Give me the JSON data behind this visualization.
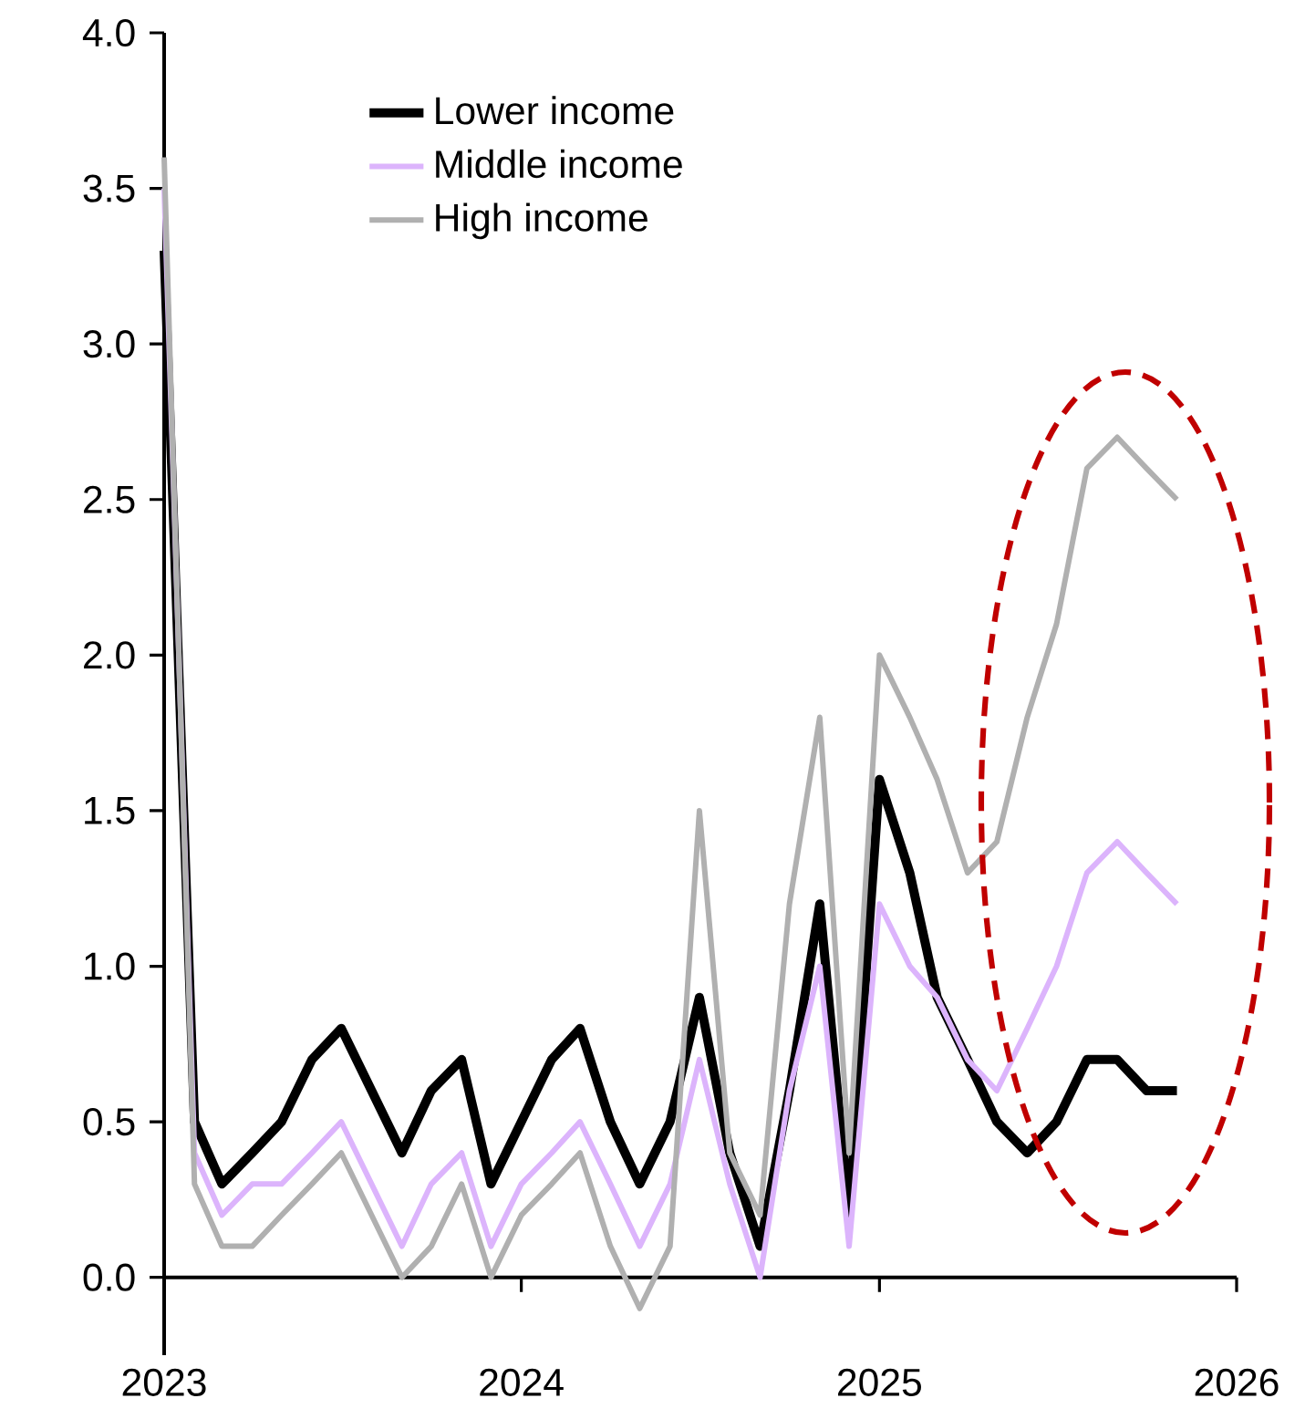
{
  "chart_data": {
    "type": "line",
    "x": [
      "2023-01",
      "2023-02",
      "2023-03",
      "2023-04",
      "2023-05",
      "2023-06",
      "2023-07",
      "2023-08",
      "2023-09",
      "2023-10",
      "2023-11",
      "2023-12",
      "2024-01",
      "2024-02",
      "2024-03",
      "2024-04",
      "2024-05",
      "2024-06",
      "2024-07",
      "2024-08",
      "2024-09",
      "2024-10",
      "2024-11",
      "2024-12",
      "2025-01",
      "2025-02",
      "2025-03",
      "2025-04",
      "2025-05",
      "2025-06",
      "2025-07",
      "2025-08",
      "2025-09",
      "2025-10",
      "2025-11"
    ],
    "series": [
      {
        "name": "Lower income",
        "color": "#000000",
        "values": [
          3.3,
          0.5,
          0.3,
          0.4,
          0.5,
          0.7,
          0.8,
          0.6,
          0.4,
          0.6,
          0.7,
          0.3,
          0.5,
          0.7,
          0.8,
          0.5,
          0.3,
          0.5,
          0.9,
          0.4,
          0.1,
          0.6,
          1.2,
          0.2,
          1.6,
          1.3,
          0.9,
          0.7,
          0.5,
          0.4,
          0.5,
          0.7,
          0.7,
          0.6,
          0.6
        ]
      },
      {
        "name": "Middle income",
        "color": "#dcb4fc",
        "values": [
          3.5,
          0.4,
          0.2,
          0.3,
          0.3,
          0.4,
          0.5,
          0.3,
          0.1,
          0.3,
          0.4,
          0.1,
          0.3,
          0.4,
          0.5,
          0.3,
          0.1,
          0.3,
          0.7,
          0.3,
          0.0,
          0.6,
          1.0,
          0.1,
          1.2,
          1.0,
          0.9,
          0.7,
          0.6,
          0.8,
          1.0,
          1.3,
          1.4,
          1.3,
          1.2
        ]
      },
      {
        "name": "High income",
        "color": "#b0b0b0",
        "values": [
          3.6,
          0.3,
          0.1,
          0.1,
          0.2,
          0.3,
          0.4,
          0.2,
          0.0,
          0.1,
          0.3,
          0.0,
          0.2,
          0.3,
          0.4,
          0.1,
          -0.1,
          0.1,
          1.5,
          0.4,
          0.2,
          1.2,
          1.8,
          0.4,
          2.0,
          1.8,
          1.6,
          1.3,
          1.4,
          1.8,
          2.1,
          2.6,
          2.7,
          2.6,
          2.5
        ]
      }
    ],
    "xlim": [
      "2023-01-01",
      "2026-01-01"
    ],
    "xticks": [
      {
        "value": "2023-01-01",
        "label": "2023"
      },
      {
        "value": "2024-01-01",
        "label": "2024"
      },
      {
        "value": "2025-01-01",
        "label": "2025"
      },
      {
        "value": "2026-01-01",
        "label": "2026"
      }
    ],
    "ylim": [
      -0.25,
      4
    ],
    "yticks": [
      {
        "value": 0,
        "label": "0.0"
      },
      {
        "value": 0.5,
        "label": "0.5"
      },
      {
        "value": 1,
        "label": "1.0"
      },
      {
        "value": 1.5,
        "label": "1.5"
      },
      {
        "value": 2,
        "label": "2.0"
      },
      {
        "value": 2.5,
        "label": "2.5"
      },
      {
        "value": 3,
        "label": "3.0"
      },
      {
        "value": 3.5,
        "label": "3.5"
      },
      {
        "value": 4,
        "label": "4.0"
      }
    ],
    "legend": "top left"
  }
}
